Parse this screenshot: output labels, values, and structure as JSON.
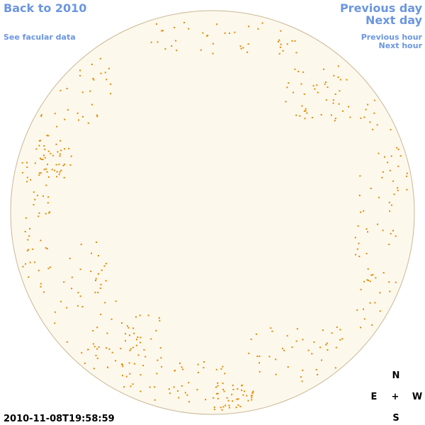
{
  "nav": {
    "back": "Back to 2010",
    "facular": "See facular data",
    "previous_day": "Previous day",
    "next_day": "Next day",
    "previous_hour": "Previous hour",
    "next_hour": "Next hour"
  },
  "timestamp": "2010-11-08T19:58:59",
  "compass": {
    "north": "N",
    "east": "E",
    "center": "+",
    "west": "W",
    "south": "S"
  }
}
